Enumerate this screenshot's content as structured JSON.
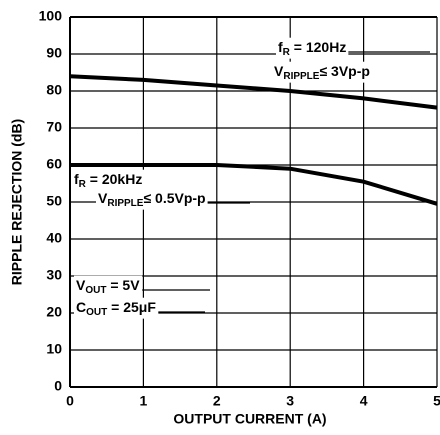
{
  "chart_data": {
    "type": "line",
    "x": [
      0,
      1,
      2,
      3,
      4,
      5
    ],
    "series": [
      {
        "color": "#000000",
        "values": [
          84,
          83,
          81.5,
          80,
          78,
          75.5
        ]
      },
      {
        "color": "#000000",
        "values": [
          60,
          60,
          60,
          59,
          55.5,
          49.5
        ]
      }
    ],
    "xlim": [
      0,
      5
    ],
    "xticks": [
      0,
      1,
      2,
      3,
      4,
      5
    ],
    "ylim": [
      0,
      100
    ],
    "yticks": [
      0,
      10,
      20,
      30,
      40,
      50,
      60,
      70,
      80,
      90,
      100
    ],
    "grid": true,
    "xlabel": "OUTPUT CURRENT (A)",
    "ylabel": "RIPPLE REJECTION (dB)",
    "annotations": [
      {
        "parts": [
          {
            "text": "f"
          },
          {
            "text": "R",
            "sub": true
          },
          {
            "text": " = 120Hz"
          }
        ]
      },
      {
        "parts": [
          {
            "text": "V"
          },
          {
            "text": "RIPPLE",
            "sub": true
          },
          {
            "text": "≤ 3Vp-p"
          }
        ]
      },
      {
        "parts": [
          {
            "text": "f"
          },
          {
            "text": "R",
            "sub": true
          },
          {
            "text": " = 20kHz"
          }
        ]
      },
      {
        "parts": [
          {
            "text": "V"
          },
          {
            "text": "RIPPLE",
            "sub": true
          },
          {
            "text": "≤ 0.5Vp-p"
          }
        ]
      },
      {
        "parts": [
          {
            "text": "V"
          },
          {
            "text": "OUT",
            "sub": true
          },
          {
            "text": " = 5V"
          }
        ]
      },
      {
        "parts": [
          {
            "text": "C"
          },
          {
            "text": "OUT",
            "sub": true
          },
          {
            "text": " = 25μF"
          }
        ]
      }
    ]
  }
}
